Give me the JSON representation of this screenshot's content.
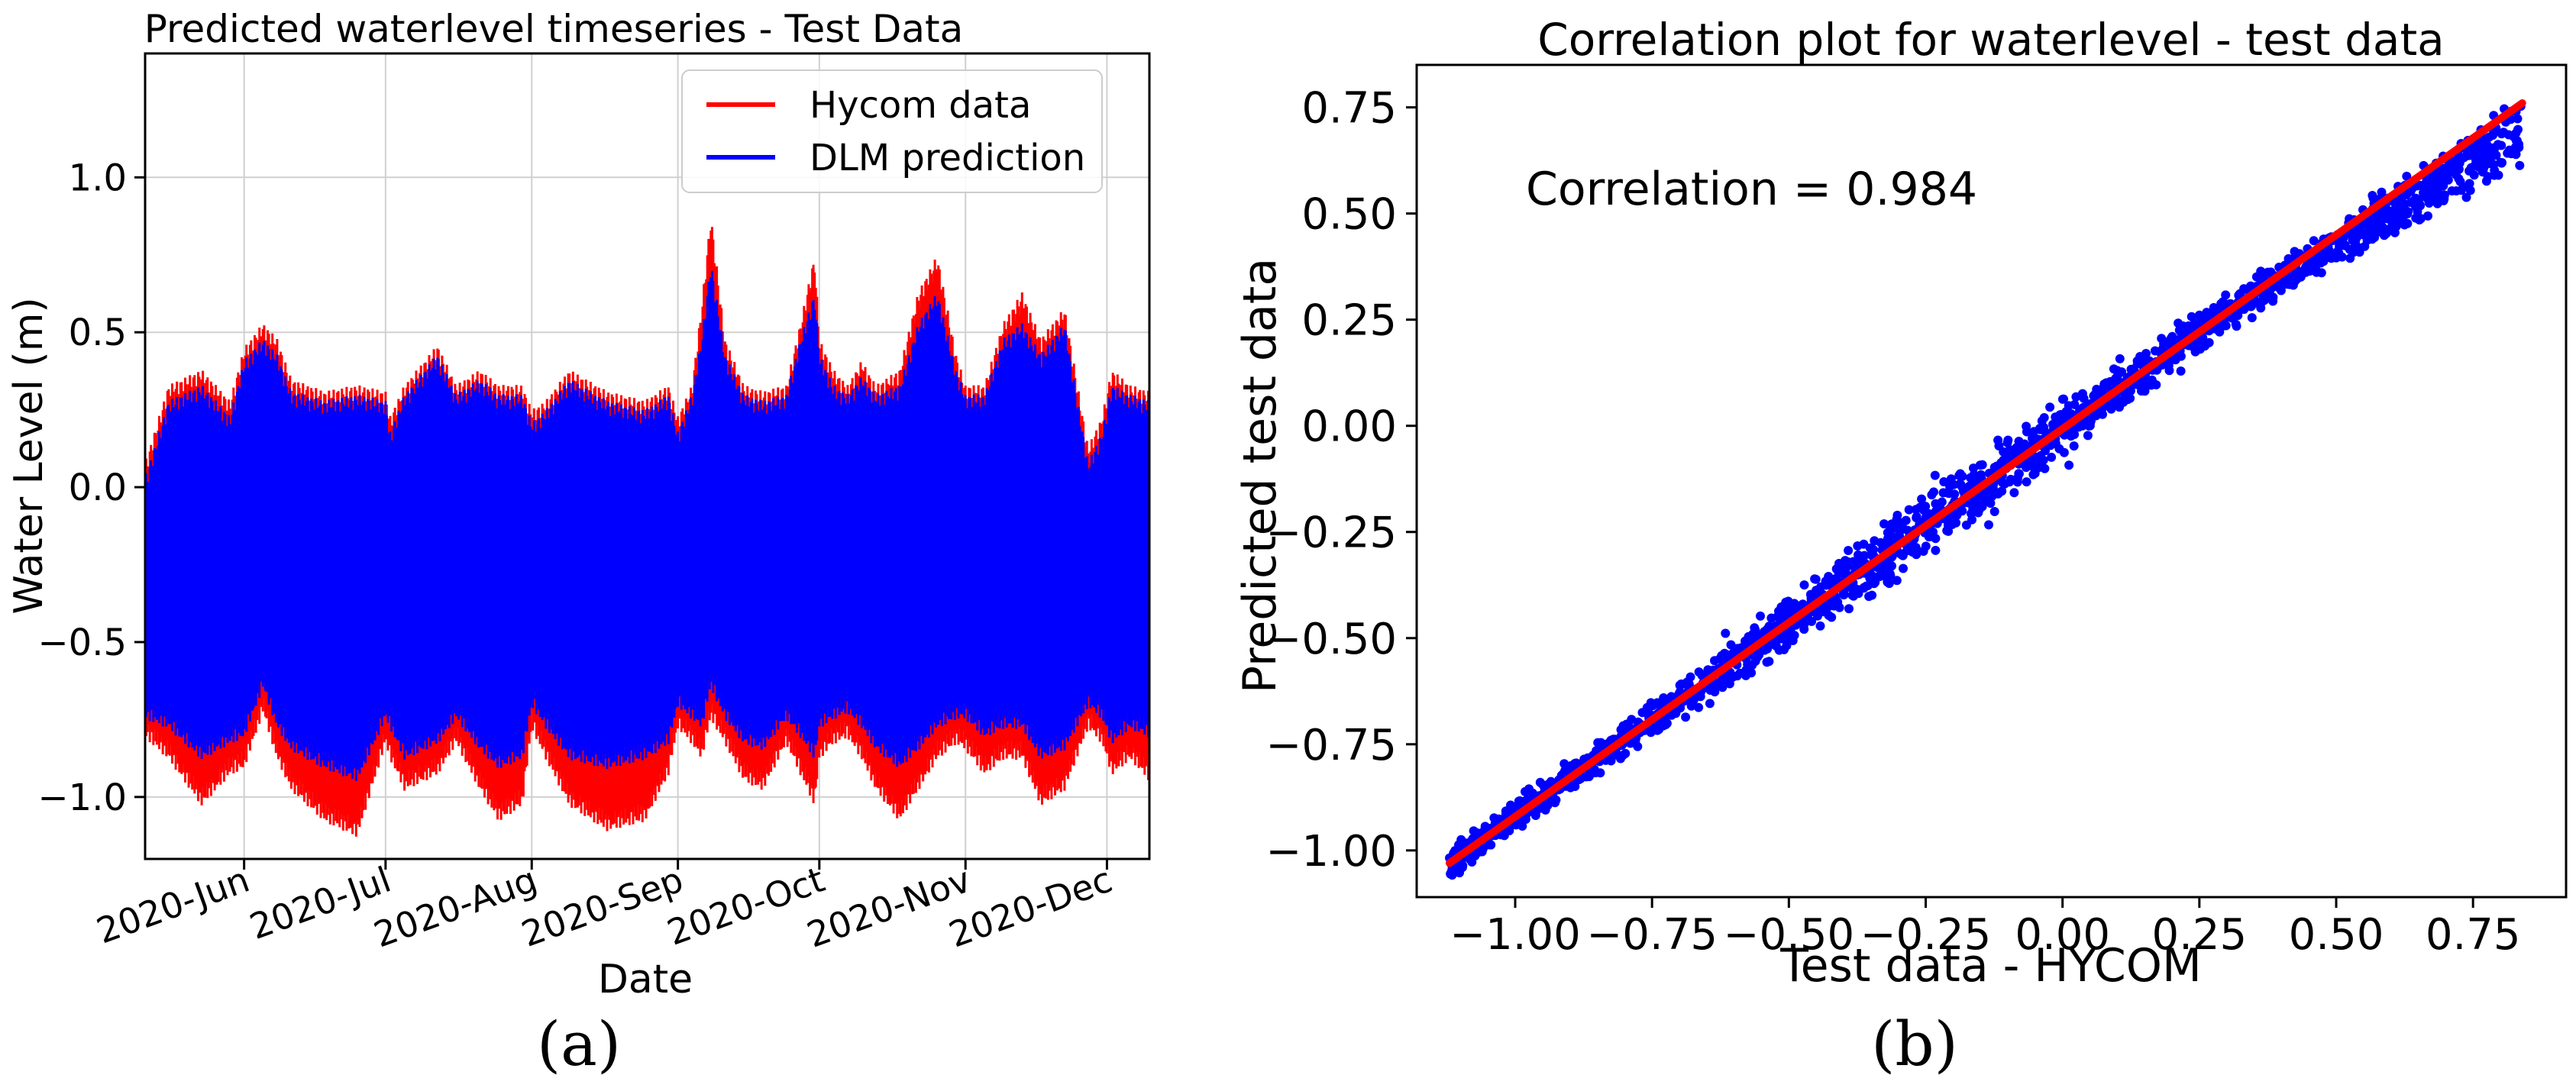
{
  "chart_data": [
    {
      "type": "line",
      "title": "Predicted waterlevel timeseries - Test Data",
      "xlabel": "Date",
      "ylabel": "Water Level (m)",
      "ylim": [
        -1.2,
        1.4
      ],
      "yticks": [
        -1.0,
        -0.5,
        0.0,
        0.5,
        1.0
      ],
      "ytick_labels": [
        "−1.0",
        "−0.5",
        "0.0",
        "0.5",
        "1.0"
      ],
      "xtick_labels": [
        "2020-Jun",
        "2020-Jul",
        "2020-Aug",
        "2020-Sep",
        "2020-Oct",
        "2020-Nov",
        "2020-Dec"
      ],
      "x_range_days": [
        0,
        213
      ],
      "xtick_days": [
        21,
        51,
        82,
        113,
        143,
        174,
        204
      ],
      "grid": true,
      "legend_position": "top-right",
      "series": [
        {
          "name": "Hycom data",
          "color": "#ff0000",
          "day": [
            0,
            5,
            12,
            18,
            21,
            25,
            28,
            31,
            38,
            45,
            51,
            52,
            55,
            62,
            66,
            71,
            75,
            80,
            82,
            85,
            90,
            98,
            106,
            111,
            113,
            116,
            118,
            120,
            123,
            127,
            131,
            136,
            139,
            142,
            143,
            146,
            149,
            152,
            155,
            160,
            164,
            168,
            172,
            174,
            178,
            182,
            186,
            190,
            195,
            200,
            203,
            205,
            209,
            213
          ],
          "upper": [
            0.05,
            0.3,
            0.35,
            0.25,
            0.42,
            0.5,
            0.45,
            0.32,
            0.28,
            0.3,
            0.28,
            0.2,
            0.3,
            0.43,
            0.3,
            0.35,
            0.3,
            0.3,
            0.22,
            0.25,
            0.35,
            0.28,
            0.25,
            0.3,
            0.2,
            0.3,
            0.55,
            0.85,
            0.45,
            0.3,
            0.28,
            0.3,
            0.5,
            0.72,
            0.45,
            0.35,
            0.3,
            0.38,
            0.3,
            0.35,
            0.6,
            0.72,
            0.4,
            0.3,
            0.3,
            0.5,
            0.6,
            0.45,
            0.55,
            0.1,
            0.2,
            0.35,
            0.3,
            0.28
          ],
          "lower": [
            -0.78,
            -0.85,
            -1.0,
            -0.9,
            -0.88,
            -0.7,
            -0.85,
            -0.95,
            -1.05,
            -1.1,
            -0.8,
            -0.85,
            -0.95,
            -0.9,
            -0.8,
            -0.95,
            -1.05,
            -1.0,
            -0.75,
            -0.85,
            -1.0,
            -1.08,
            -1.05,
            -0.9,
            -0.75,
            -0.8,
            -0.85,
            -0.72,
            -0.8,
            -0.92,
            -0.95,
            -0.8,
            -0.9,
            -1.0,
            -0.85,
            -0.8,
            -0.78,
            -0.85,
            -0.95,
            -1.05,
            -0.95,
            -0.85,
            -0.8,
            -0.82,
            -0.9,
            -0.85,
            -0.85,
            -1.0,
            -0.95,
            -0.75,
            -0.8,
            -0.9,
            -0.85,
            -0.92
          ]
        },
        {
          "name": "DLM prediction",
          "color": "#0000ff",
          "day": [
            0,
            5,
            12,
            18,
            21,
            25,
            28,
            31,
            38,
            45,
            51,
            52,
            55,
            62,
            66,
            71,
            75,
            80,
            82,
            85,
            90,
            98,
            106,
            111,
            113,
            116,
            118,
            120,
            123,
            127,
            131,
            136,
            139,
            142,
            143,
            146,
            149,
            152,
            155,
            160,
            164,
            168,
            172,
            174,
            178,
            182,
            186,
            190,
            195,
            200,
            203,
            205,
            209,
            213
          ],
          "upper": [
            0.0,
            0.25,
            0.3,
            0.2,
            0.38,
            0.45,
            0.4,
            0.28,
            0.25,
            0.27,
            0.25,
            0.15,
            0.27,
            0.4,
            0.27,
            0.32,
            0.27,
            0.27,
            0.18,
            0.22,
            0.32,
            0.25,
            0.22,
            0.27,
            0.15,
            0.27,
            0.45,
            0.7,
            0.4,
            0.27,
            0.25,
            0.27,
            0.45,
            0.6,
            0.4,
            0.3,
            0.27,
            0.33,
            0.27,
            0.3,
            0.5,
            0.6,
            0.35,
            0.27,
            0.27,
            0.45,
            0.5,
            0.4,
            0.5,
            0.05,
            0.15,
            0.3,
            0.27,
            0.25
          ],
          "lower": [
            -0.72,
            -0.75,
            -0.85,
            -0.8,
            -0.78,
            -0.62,
            -0.75,
            -0.82,
            -0.88,
            -0.92,
            -0.72,
            -0.75,
            -0.85,
            -0.8,
            -0.72,
            -0.82,
            -0.88,
            -0.85,
            -0.68,
            -0.75,
            -0.85,
            -0.88,
            -0.85,
            -0.8,
            -0.68,
            -0.72,
            -0.75,
            -0.62,
            -0.72,
            -0.8,
            -0.82,
            -0.72,
            -0.78,
            -0.85,
            -0.75,
            -0.72,
            -0.7,
            -0.75,
            -0.82,
            -0.88,
            -0.82,
            -0.75,
            -0.72,
            -0.72,
            -0.78,
            -0.75,
            -0.75,
            -0.85,
            -0.82,
            -0.68,
            -0.72,
            -0.8,
            -0.75,
            -0.78
          ]
        }
      ],
      "panel_label": "(a)"
    },
    {
      "type": "scatter",
      "title": "Correlation plot for waterlevel - test data",
      "xlabel": "Test data - HYCOM",
      "ylabel": "Predicted test data",
      "xlim": [
        -1.18,
        0.92
      ],
      "ylim": [
        -1.11,
        0.85
      ],
      "xticks": [
        -1.0,
        -0.75,
        -0.5,
        -0.25,
        0.0,
        0.25,
        0.5,
        0.75
      ],
      "xtick_labels": [
        "−1.00",
        "−0.75",
        "−0.50",
        "−0.25",
        "0.00",
        "0.25",
        "0.50",
        "0.75"
      ],
      "yticks": [
        -1.0,
        -0.75,
        -0.5,
        -0.25,
        0.0,
        0.25,
        0.5,
        0.75
      ],
      "ytick_labels": [
        "−1.00",
        "−0.75",
        "−0.50",
        "−0.25",
        "0.00",
        "0.25",
        "0.50",
        "0.75"
      ],
      "grid": false,
      "point_color": "#0000ff",
      "x_range": [
        -1.12,
        0.84
      ],
      "fit_line": {
        "color": "#ff0000",
        "x": [
          -1.12,
          0.84
        ],
        "y": [
          -1.03,
          0.76
        ]
      },
      "annotation": "Correlation = 0.984",
      "correlation": 0.984,
      "panel_label": "(b)"
    }
  ]
}
